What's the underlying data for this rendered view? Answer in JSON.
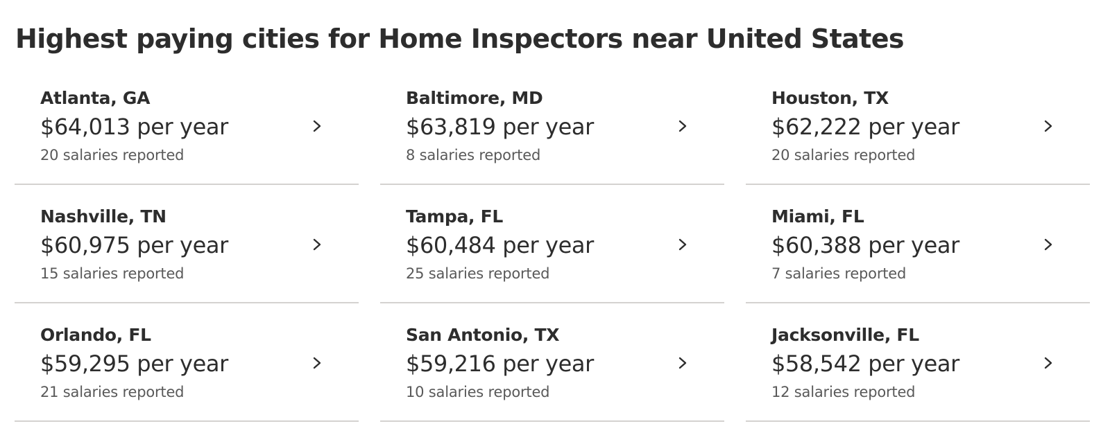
{
  "page": {
    "title": "Highest paying cities for Home Inspectors near United States"
  },
  "cities": [
    {
      "name": "Atlanta, GA",
      "salary": "$64,013 per year",
      "reported": "20 salaries reported"
    },
    {
      "name": "Baltimore, MD",
      "salary": "$63,819 per year",
      "reported": "8 salaries reported"
    },
    {
      "name": "Houston, TX",
      "salary": "$62,222 per year",
      "reported": "20 salaries reported"
    },
    {
      "name": "Nashville, TN",
      "salary": "$60,975 per year",
      "reported": "15 salaries reported"
    },
    {
      "name": "Tampa, FL",
      "salary": "$60,484 per year",
      "reported": "25 salaries reported"
    },
    {
      "name": "Miami, FL",
      "salary": "$60,388 per year",
      "reported": "7 salaries reported"
    },
    {
      "name": "Orlando, FL",
      "salary": "$59,295 per year",
      "reported": "21 salaries reported"
    },
    {
      "name": "San Antonio, TX",
      "salary": "$59,216 per year",
      "reported": "10 salaries reported"
    },
    {
      "name": "Jacksonville, FL",
      "salary": "$58,542 per year",
      "reported": "12 salaries reported"
    }
  ],
  "icons": {
    "card_arrow": "chevron-right-icon"
  },
  "colors": {
    "text_primary": "#2d2d2d",
    "text_secondary": "#595959",
    "divider": "#d4d2d0"
  }
}
